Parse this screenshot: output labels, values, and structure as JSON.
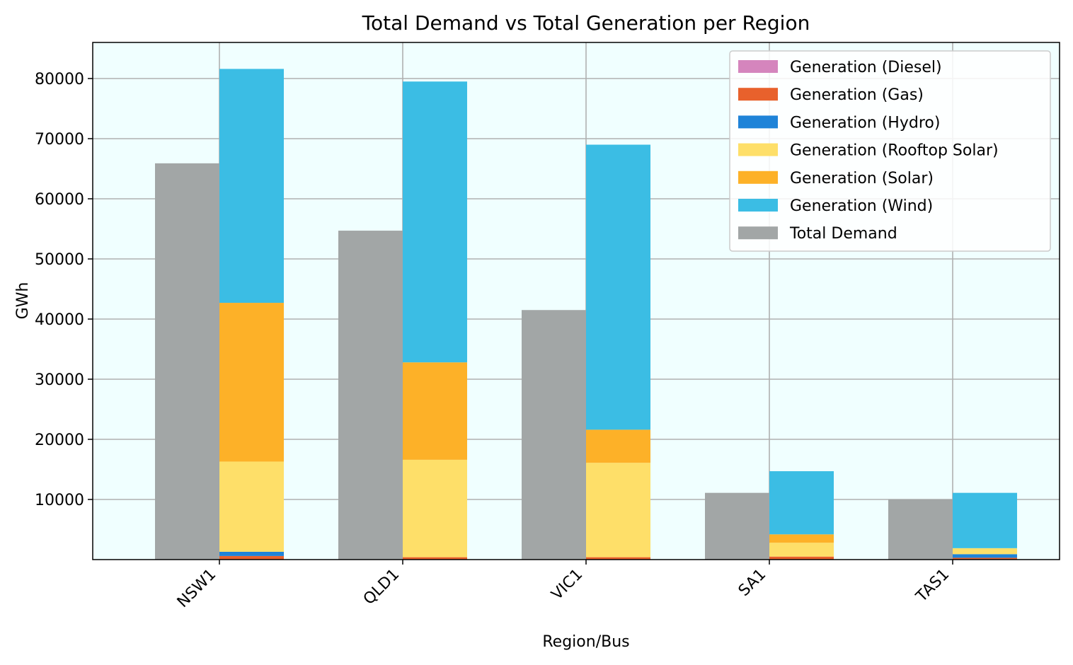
{
  "chart_data": {
    "type": "bar",
    "title": "Total Demand vs Total Generation per Region",
    "xlabel": "Region/Bus",
    "ylabel": "GWh",
    "categories": [
      "NSW1",
      "QLD1",
      "VIC1",
      "SA1",
      "TAS1"
    ],
    "ylim": [
      0,
      86000
    ],
    "yticks": [
      10000,
      20000,
      30000,
      40000,
      50000,
      60000,
      70000,
      80000
    ],
    "grid": true,
    "legend_position": "top-right",
    "background": "#f0ffff",
    "demand_series": {
      "name": "Total Demand",
      "color": "#a2a6a6",
      "values": [
        65900,
        54700,
        41500,
        11100,
        10000
      ]
    },
    "generation_series": [
      {
        "name": "Generation (Diesel)",
        "color": "#d585bd",
        "values": [
          0,
          0,
          0,
          0,
          0
        ]
      },
      {
        "name": "Generation (Gas)",
        "color": "#e8612c",
        "values": [
          600,
          400,
          400,
          500,
          300
        ]
      },
      {
        "name": "Generation (Hydro)",
        "color": "#1f83d8",
        "values": [
          700,
          0,
          0,
          0,
          600
        ]
      },
      {
        "name": "Generation (Rooftop Solar)",
        "color": "#fedf69",
        "values": [
          15000,
          16200,
          15700,
          2300,
          1000
        ]
      },
      {
        "name": "Generation (Solar)",
        "color": "#fdb128",
        "values": [
          26400,
          16200,
          5500,
          1400,
          0
        ]
      },
      {
        "name": "Generation (Wind)",
        "color": "#3bbde4",
        "values": [
          38900,
          46700,
          47400,
          10500,
          9200
        ]
      }
    ]
  }
}
